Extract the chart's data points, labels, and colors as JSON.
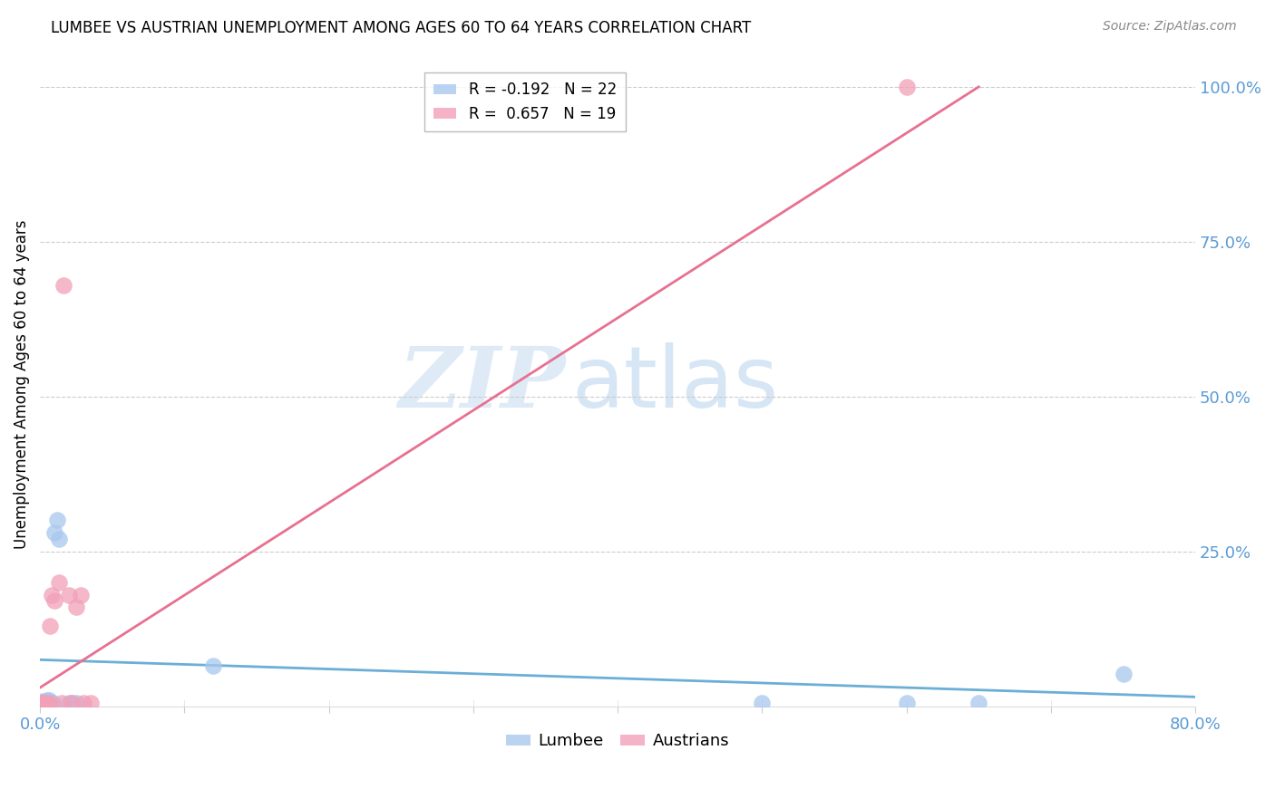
{
  "title": "LUMBEE VS AUSTRIAN UNEMPLOYMENT AMONG AGES 60 TO 64 YEARS CORRELATION CHART",
  "source": "Source: ZipAtlas.com",
  "ylabel": "Unemployment Among Ages 60 to 64 years",
  "watermark_zip": "ZIP",
  "watermark_atlas": "atlas",
  "xlim": [
    0.0,
    0.8
  ],
  "ylim": [
    0.0,
    1.04
  ],
  "xticks": [
    0.0,
    0.1,
    0.2,
    0.3,
    0.4,
    0.5,
    0.6,
    0.7,
    0.8
  ],
  "xticklabels": [
    "0.0%",
    "",
    "",
    "",
    "",
    "",
    "",
    "",
    "80.0%"
  ],
  "yticks": [
    0.0,
    0.25,
    0.5,
    0.75,
    1.0
  ],
  "yticklabels": [
    "",
    "25.0%",
    "50.0%",
    "75.0%",
    "100.0%"
  ],
  "lumbee_color": "#A8C8EE",
  "austrian_color": "#F2A0B8",
  "lumbee_line_color": "#6BAED6",
  "austrian_line_color": "#E87090",
  "R_lumbee": -0.192,
  "N_lumbee": 22,
  "R_austrians": 0.657,
  "N_austrians": 19,
  "lumbee_x": [
    0.001,
    0.002,
    0.003,
    0.004,
    0.005,
    0.005,
    0.006,
    0.006,
    0.007,
    0.008,
    0.009,
    0.01,
    0.012,
    0.013,
    0.02,
    0.022,
    0.025,
    0.12,
    0.5,
    0.6,
    0.65,
    0.75
  ],
  "lumbee_y": [
    0.005,
    0.008,
    0.005,
    0.005,
    0.005,
    0.01,
    0.005,
    0.01,
    0.005,
    0.005,
    0.005,
    0.28,
    0.3,
    0.27,
    0.005,
    0.005,
    0.005,
    0.065,
    0.005,
    0.005,
    0.005,
    0.052
  ],
  "austrian_x": [
    0.001,
    0.002,
    0.003,
    0.004,
    0.005,
    0.006,
    0.007,
    0.008,
    0.01,
    0.013,
    0.015,
    0.016,
    0.02,
    0.022,
    0.025,
    0.028,
    0.03,
    0.035,
    0.6
  ],
  "austrian_y": [
    0.005,
    0.005,
    0.005,
    0.005,
    0.005,
    0.005,
    0.13,
    0.18,
    0.17,
    0.2,
    0.005,
    0.68,
    0.18,
    0.005,
    0.16,
    0.18,
    0.005,
    0.005,
    1.0
  ],
  "lumbee_trend_x": [
    0.0,
    0.8
  ],
  "lumbee_trend_y": [
    0.075,
    0.015
  ],
  "austrian_trend_x": [
    0.0,
    0.65
  ],
  "austrian_trend_y": [
    0.03,
    1.0
  ],
  "title_fontsize": 12,
  "source_fontsize": 10,
  "axis_tick_color": "#5B9BD5",
  "grid_color": "#cccccc",
  "background_color": "#ffffff"
}
